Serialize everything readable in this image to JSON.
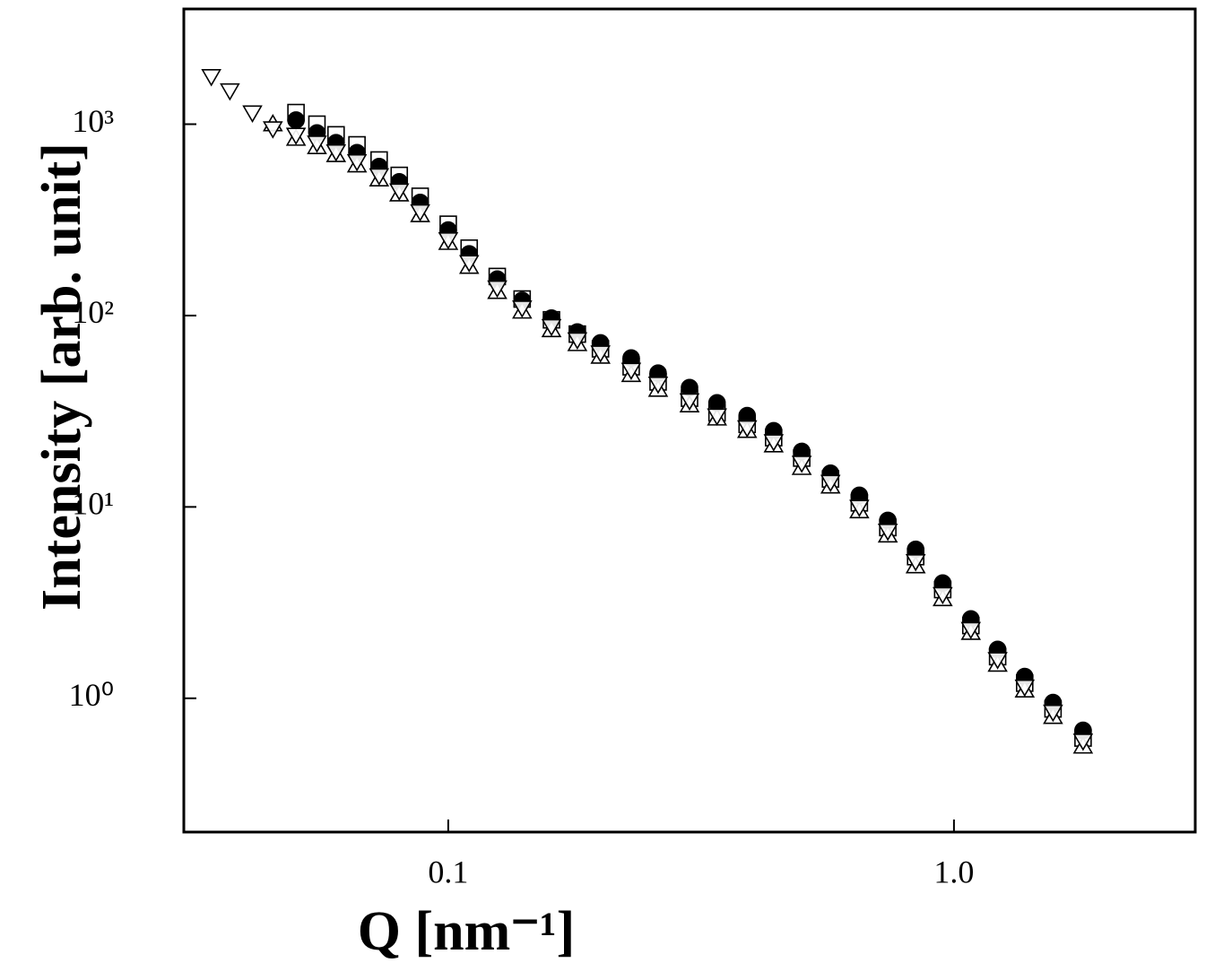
{
  "chart_data": {
    "type": "scatter",
    "x_label": "Q [nm⁻¹]",
    "y_label": "Intensity [arb. unit]",
    "xlog": true,
    "ylog": true,
    "xlim": [
      0.03,
      3
    ],
    "ylim": [
      0.2,
      4000
    ],
    "xticks": [
      0.1,
      {
        "value": 1,
        "label": "1.0"
      }
    ],
    "yticks": [
      {
        "value": 1,
        "label": "10⁰"
      },
      {
        "value": 10,
        "label": "10¹"
      },
      {
        "value": 100,
        "label": "10²"
      },
      {
        "value": 1000,
        "label": "10³"
      }
    ],
    "series": [
      {
        "marker": "square",
        "filled": false,
        "color": "#000000",
        "x": [
          0.05,
          0.055,
          0.06,
          0.066,
          0.073,
          0.08,
          0.088,
          0.1,
          0.11,
          0.125,
          0.14,
          0.16,
          0.18,
          0.2,
          0.23,
          0.26,
          0.3,
          0.34,
          0.39,
          0.44,
          0.5,
          0.57,
          0.65,
          0.74,
          0.84,
          0.95,
          1.08,
          1.22,
          1.38,
          1.57,
          1.8
        ],
        "values": [
          1150,
          1000,
          880,
          780,
          650,
          540,
          420,
          300,
          225,
          160,
          122,
          95,
          80,
          67,
          54,
          45,
          37,
          31,
          27,
          23,
          18,
          14,
          10.5,
          7.8,
          5.5,
          3.7,
          2.4,
          1.65,
          1.2,
          0.88,
          0.62
        ]
      },
      {
        "marker": "circle",
        "filled": true,
        "color": "#000000",
        "x": [
          0.05,
          0.055,
          0.06,
          0.066,
          0.073,
          0.08,
          0.088,
          0.1,
          0.11,
          0.125,
          0.14,
          0.16,
          0.18,
          0.2,
          0.23,
          0.26,
          0.3,
          0.34,
          0.39,
          0.44,
          0.5,
          0.57,
          0.65,
          0.74,
          0.84,
          0.95,
          1.08,
          1.22,
          1.38,
          1.57,
          1.8
        ],
        "values": [
          1050,
          900,
          800,
          710,
          600,
          500,
          390,
          280,
          210,
          155,
          120,
          97,
          82,
          72,
          60,
          50,
          42,
          35,
          30,
          25,
          19.5,
          15,
          11.5,
          8.5,
          6,
          4,
          2.6,
          1.8,
          1.3,
          0.95,
          0.68
        ]
      },
      {
        "marker": "triangle-up",
        "filled": false,
        "color": "#000000",
        "x": [
          0.045,
          0.05,
          0.055,
          0.06,
          0.066,
          0.073,
          0.08,
          0.088,
          0.1,
          0.11,
          0.125,
          0.14,
          0.16,
          0.18,
          0.2,
          0.23,
          0.26,
          0.3,
          0.34,
          0.39,
          0.44,
          0.5,
          0.57,
          0.65,
          0.74,
          0.84,
          0.95,
          1.08,
          1.22,
          1.38,
          1.57,
          1.8
        ],
        "values": [
          1000,
          840,
          760,
          690,
          610,
          515,
          430,
          335,
          240,
          180,
          133,
          105,
          84,
          71,
          61,
          49,
          41,
          34,
          29,
          25,
          21,
          16,
          12.8,
          9.5,
          7.1,
          4.9,
          3.3,
          2.2,
          1.5,
          1.1,
          0.8,
          0.56
        ]
      },
      {
        "marker": "triangle-down",
        "filled": false,
        "color": "#000000",
        "x": [
          0.034,
          0.037,
          0.041,
          0.045,
          0.05,
          0.055,
          0.06,
          0.066,
          0.073,
          0.08,
          0.088,
          0.1,
          0.11,
          0.125,
          0.14,
          0.16,
          0.18,
          0.2,
          0.23,
          0.26,
          0.3,
          0.34,
          0.39,
          0.44,
          0.5,
          0.57,
          0.65,
          0.74,
          0.84,
          0.95,
          1.08,
          1.22,
          1.38,
          1.57,
          1.8
        ],
        "values": [
          1780,
          1500,
          1150,
          950,
          880,
          800,
          720,
          640,
          540,
          450,
          350,
          250,
          190,
          140,
          110,
          88,
          75,
          64,
          52,
          44,
          36,
          30,
          26,
          22,
          17,
          13.5,
          10,
          7.5,
          5.2,
          3.5,
          2.3,
          1.6,
          1.15,
          0.85,
          0.6
        ]
      }
    ]
  }
}
